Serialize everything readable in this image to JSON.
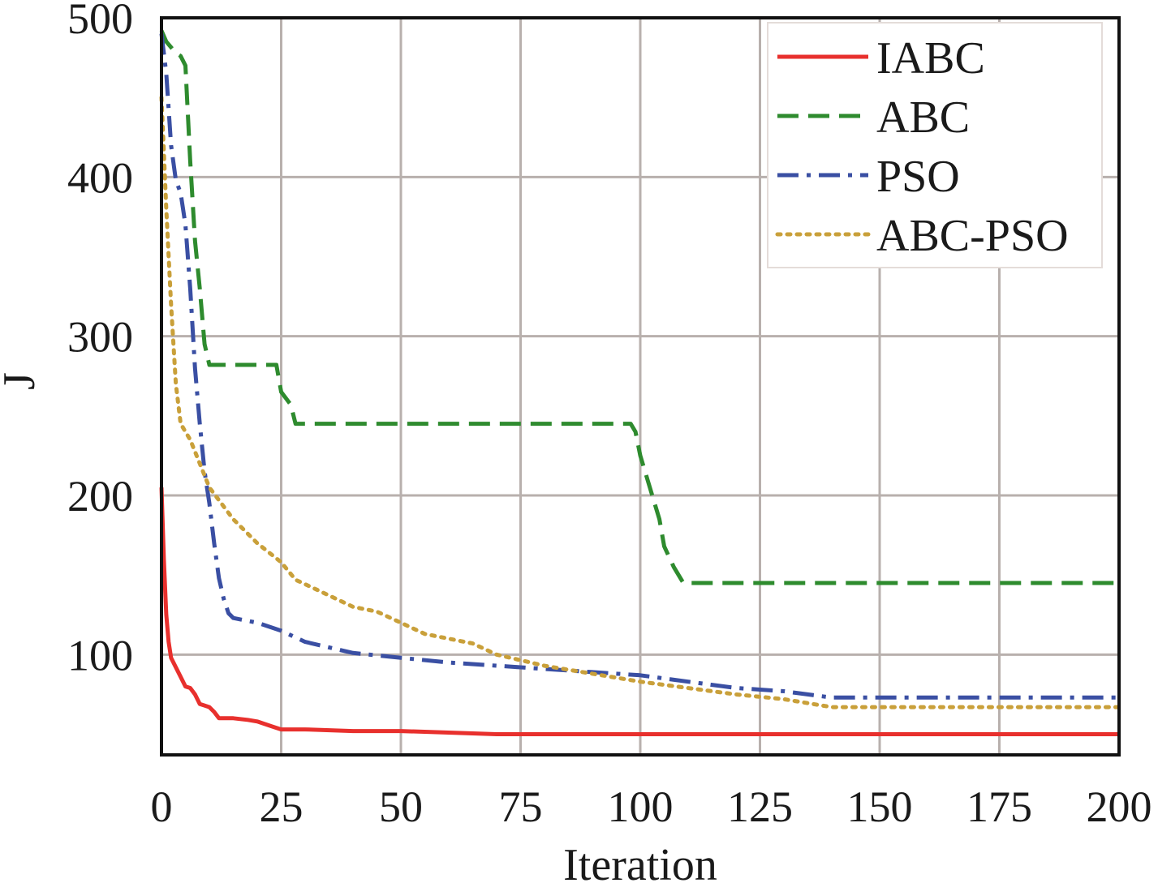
{
  "chart_data": {
    "type": "line",
    "xlabel": "Iteration",
    "ylabel": "J",
    "xlim": [
      0,
      200
    ],
    "ylim": [
      37,
      500
    ],
    "xticks": [
      0,
      25,
      50,
      75,
      100,
      125,
      150,
      175,
      200
    ],
    "yticks": [
      100,
      200,
      300,
      400,
      500
    ],
    "grid": true,
    "legend_position": "top-right",
    "series": [
      {
        "name": "IABC",
        "color": "#e8302d",
        "style": "solid",
        "points": [
          [
            0,
            205
          ],
          [
            0.5,
            160
          ],
          [
            1,
            125
          ],
          [
            1.5,
            108
          ],
          [
            2,
            98
          ],
          [
            3,
            92
          ],
          [
            4,
            86
          ],
          [
            5,
            80
          ],
          [
            6,
            79
          ],
          [
            7,
            75
          ],
          [
            8,
            69
          ],
          [
            9,
            68
          ],
          [
            10,
            67
          ],
          [
            11,
            64
          ],
          [
            12,
            60
          ],
          [
            15,
            60
          ],
          [
            18,
            59
          ],
          [
            20,
            58
          ],
          [
            23,
            55
          ],
          [
            25,
            53
          ],
          [
            30,
            53
          ],
          [
            40,
            52
          ],
          [
            50,
            52
          ],
          [
            60,
            51
          ],
          [
            70,
            50
          ],
          [
            100,
            50
          ],
          [
            150,
            50
          ],
          [
            200,
            50
          ]
        ]
      },
      {
        "name": "ABC",
        "color": "#2e8b2e",
        "style": "dashed",
        "points": [
          [
            0,
            492
          ],
          [
            1,
            485
          ],
          [
            3,
            478
          ],
          [
            4,
            476
          ],
          [
            5,
            470
          ],
          [
            6,
            410
          ],
          [
            7,
            360
          ],
          [
            8,
            330
          ],
          [
            9,
            295
          ],
          [
            10,
            282
          ],
          [
            24,
            282
          ],
          [
            25,
            265
          ],
          [
            27,
            257
          ],
          [
            28,
            245
          ],
          [
            98,
            245
          ],
          [
            99,
            240
          ],
          [
            100,
            225
          ],
          [
            102,
            205
          ],
          [
            104,
            185
          ],
          [
            105,
            168
          ],
          [
            107,
            155
          ],
          [
            109,
            145
          ],
          [
            200,
            145
          ]
        ]
      },
      {
        "name": "PSO",
        "color": "#3a4fa3",
        "style": "dashdot",
        "points": [
          [
            0,
            490
          ],
          [
            1,
            465
          ],
          [
            2,
            420
          ],
          [
            3,
            398
          ],
          [
            4,
            390
          ],
          [
            5,
            370
          ],
          [
            6,
            330
          ],
          [
            7,
            280
          ],
          [
            8,
            245
          ],
          [
            9,
            215
          ],
          [
            10,
            195
          ],
          [
            11,
            170
          ],
          [
            12,
            148
          ],
          [
            13,
            135
          ],
          [
            14,
            126
          ],
          [
            15,
            123
          ],
          [
            20,
            120
          ],
          [
            25,
            115
          ],
          [
            30,
            108
          ],
          [
            40,
            101
          ],
          [
            50,
            98
          ],
          [
            60,
            95
          ],
          [
            75,
            92
          ],
          [
            90,
            89
          ],
          [
            100,
            87
          ],
          [
            110,
            83
          ],
          [
            120,
            79
          ],
          [
            130,
            77
          ],
          [
            140,
            73
          ],
          [
            200,
            73
          ]
        ]
      },
      {
        "name": "ABC-PSO",
        "color": "#c9a03a",
        "style": "dotted",
        "points": [
          [
            0,
            450
          ],
          [
            1,
            380
          ],
          [
            2,
            320
          ],
          [
            3,
            270
          ],
          [
            4,
            245
          ],
          [
            6,
            235
          ],
          [
            8,
            220
          ],
          [
            10,
            205
          ],
          [
            15,
            185
          ],
          [
            20,
            170
          ],
          [
            25,
            158
          ],
          [
            28,
            147
          ],
          [
            33,
            140
          ],
          [
            40,
            130
          ],
          [
            45,
            127
          ],
          [
            50,
            120
          ],
          [
            55,
            113
          ],
          [
            65,
            107
          ],
          [
            70,
            100
          ],
          [
            80,
            93
          ],
          [
            100,
            83
          ],
          [
            120,
            75
          ],
          [
            130,
            72
          ],
          [
            140,
            67
          ],
          [
            200,
            67
          ]
        ]
      }
    ]
  }
}
